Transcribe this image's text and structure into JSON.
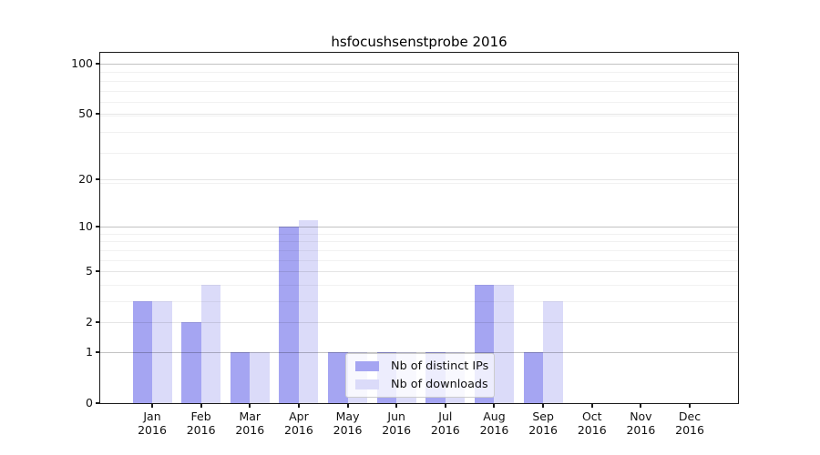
{
  "chart_data": {
    "type": "bar",
    "title": "hsfocushsenstprobe 2016",
    "categories": [
      "Jan",
      "Feb",
      "Mar",
      "Apr",
      "May",
      "Jun",
      "Jul",
      "Aug",
      "Sep",
      "Oct",
      "Nov",
      "Dec"
    ],
    "x_tick_year": "2016",
    "series": [
      {
        "name": "Nb of distinct IPs",
        "color": "#a5a5f2",
        "values": [
          3,
          2,
          1,
          10,
          1,
          1,
          1,
          4,
          1,
          0,
          0,
          0
        ]
      },
      {
        "name": "Nb of downloads",
        "color": "#dbdbf9",
        "values": [
          3,
          4,
          1,
          11,
          1,
          1,
          1,
          4,
          3,
          0,
          0,
          0
        ]
      }
    ],
    "y_axis": {
      "scale": "log1p",
      "tick_labels": [
        0,
        1,
        2,
        5,
        10,
        20,
        50,
        100
      ],
      "emphasized_gridlines": [
        1,
        10,
        100
      ],
      "minor_gridlines": [
        3,
        4,
        6,
        7,
        8,
        9,
        19,
        29,
        39,
        49,
        59,
        69,
        79,
        89
      ],
      "ylim": [
        0,
        117
      ]
    },
    "legend": {
      "position": "lower center"
    },
    "grid": true,
    "background_color": "#ffffff"
  }
}
